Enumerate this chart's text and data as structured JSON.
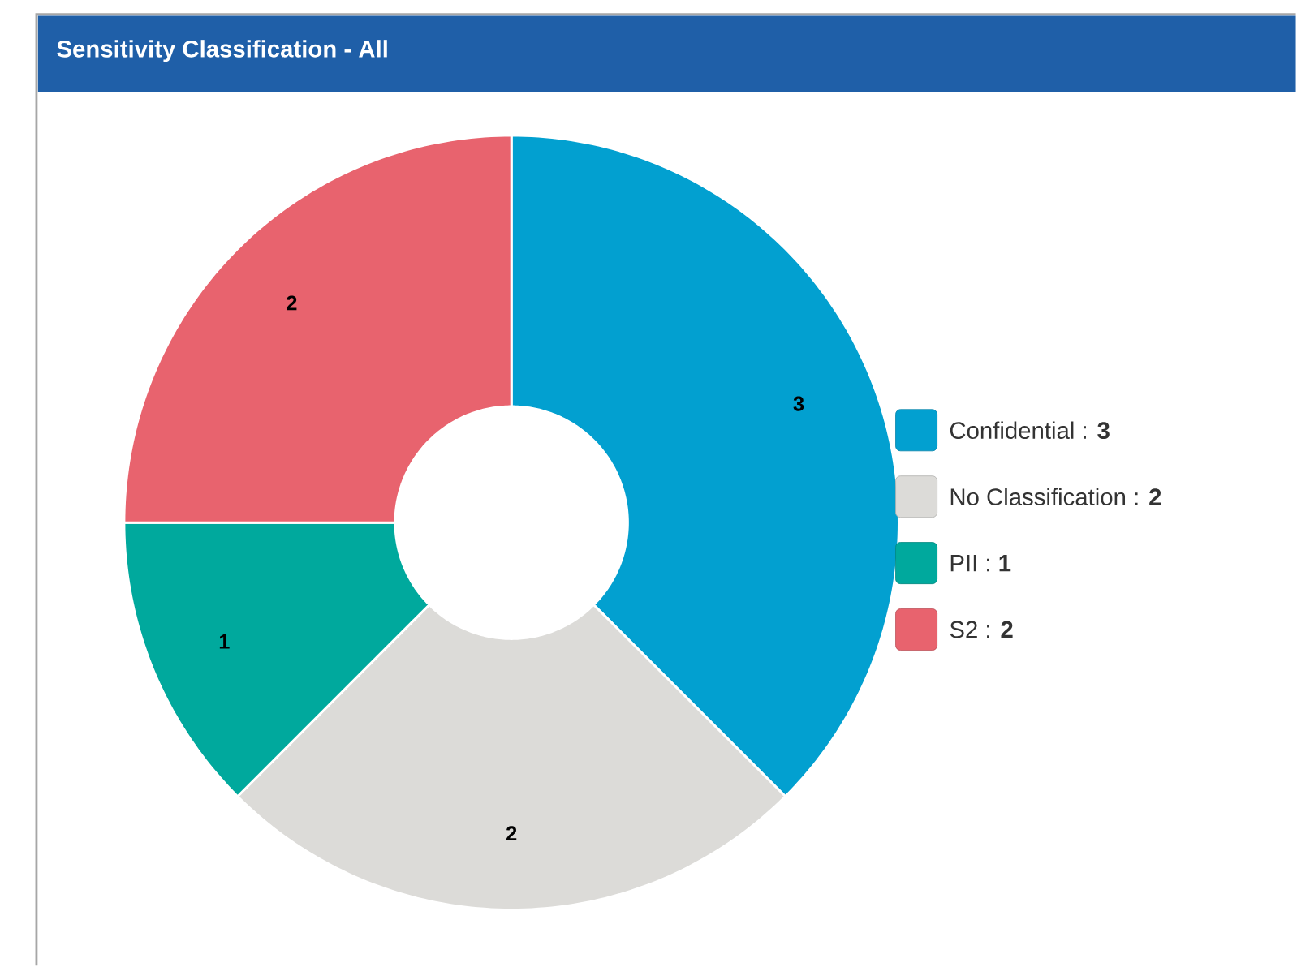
{
  "chart_data": {
    "type": "donut",
    "title": "Sensitivity Classification - All",
    "categories": [
      "Confidential : **3**",
      "No Classification : **2**",
      "PII : **1**",
      "S2 : **2**"
    ],
    "values": [
      3,
      2,
      1,
      2
    ],
    "colors": [
      "#02a0d0",
      "#dcdbd8",
      "#00a99d",
      "#e8636e"
    ],
    "data_labels": true,
    "legend": "right"
  }
}
